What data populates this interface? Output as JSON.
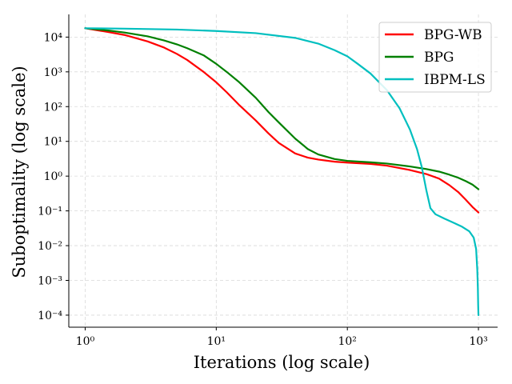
{
  "chart_data": {
    "type": "line",
    "title": "",
    "xlabel": "Iterations (log scale)",
    "ylabel": "Suboptimality (log scale)",
    "xscale": "log",
    "yscale": "log",
    "xlim": [
      0.75,
      1400
    ],
    "ylim": [
      4.5e-05,
      45000
    ],
    "x_ticks": [
      {
        "value": 1,
        "label": "10⁰"
      },
      {
        "value": 10,
        "label": "10¹"
      },
      {
        "value": 100,
        "label": "10²"
      },
      {
        "value": 1000,
        "label": "10³"
      }
    ],
    "y_ticks": [
      {
        "value": 0.0001,
        "label": "10⁻⁴"
      },
      {
        "value": 0.001,
        "label": "10⁻³"
      },
      {
        "value": 0.01,
        "label": "10⁻²"
      },
      {
        "value": 0.1,
        "label": "10⁻¹"
      },
      {
        "value": 1,
        "label": "10⁰"
      },
      {
        "value": 10,
        "label": "10¹"
      },
      {
        "value": 100,
        "label": "10²"
      },
      {
        "value": 1000,
        "label": "10³"
      },
      {
        "value": 10000,
        "label": "10⁴"
      }
    ],
    "grid": true,
    "legend_position": "top-right",
    "series": [
      {
        "name": "BPG-WB",
        "color": "#ff0000",
        "points": [
          [
            1,
            18000
          ],
          [
            1.5,
            14000
          ],
          [
            2,
            11500
          ],
          [
            3,
            7500
          ],
          [
            4,
            5000
          ],
          [
            5,
            3300
          ],
          [
            6,
            2200
          ],
          [
            8,
            1000
          ],
          [
            10,
            500
          ],
          [
            12,
            260
          ],
          [
            15,
            110
          ],
          [
            20,
            40
          ],
          [
            25,
            17
          ],
          [
            30,
            9
          ],
          [
            40,
            4.5
          ],
          [
            50,
            3.4
          ],
          [
            60,
            3.0
          ],
          [
            80,
            2.6
          ],
          [
            100,
            2.45
          ],
          [
            150,
            2.25
          ],
          [
            200,
            2.0
          ],
          [
            300,
            1.5
          ],
          [
            400,
            1.15
          ],
          [
            500,
            0.85
          ],
          [
            600,
            0.55
          ],
          [
            700,
            0.35
          ],
          [
            800,
            0.21
          ],
          [
            900,
            0.13
          ],
          [
            1000,
            0.09
          ]
        ]
      },
      {
        "name": "BPG",
        "color": "#008000",
        "points": [
          [
            1,
            18000
          ],
          [
            1.5,
            15500
          ],
          [
            2,
            13500
          ],
          [
            3,
            10500
          ],
          [
            4,
            8000
          ],
          [
            5,
            6200
          ],
          [
            6,
            4800
          ],
          [
            8,
            3000
          ],
          [
            10,
            1700
          ],
          [
            12,
            1000
          ],
          [
            15,
            500
          ],
          [
            20,
            180
          ],
          [
            25,
            70
          ],
          [
            30,
            35
          ],
          [
            40,
            12
          ],
          [
            50,
            6
          ],
          [
            60,
            4.2
          ],
          [
            80,
            3.1
          ],
          [
            100,
            2.75
          ],
          [
            150,
            2.5
          ],
          [
            200,
            2.3
          ],
          [
            300,
            1.9
          ],
          [
            400,
            1.6
          ],
          [
            500,
            1.35
          ],
          [
            600,
            1.1
          ],
          [
            700,
            0.9
          ],
          [
            800,
            0.72
          ],
          [
            900,
            0.57
          ],
          [
            1000,
            0.42
          ]
        ]
      },
      {
        "name": "IBPM-LS",
        "color": "#00bfbf",
        "points": [
          [
            1,
            18000
          ],
          [
            2,
            17500
          ],
          [
            5,
            16500
          ],
          [
            10,
            15000
          ],
          [
            20,
            13000
          ],
          [
            40,
            9500
          ],
          [
            60,
            6500
          ],
          [
            80,
            4200
          ],
          [
            100,
            2800
          ],
          [
            120,
            1700
          ],
          [
            150,
            900
          ],
          [
            200,
            300
          ],
          [
            250,
            90
          ],
          [
            300,
            22
          ],
          [
            340,
            6
          ],
          [
            370,
            1.8
          ],
          [
            400,
            0.4
          ],
          [
            430,
            0.12
          ],
          [
            470,
            0.08
          ],
          [
            550,
            0.06
          ],
          [
            650,
            0.045
          ],
          [
            750,
            0.035
          ],
          [
            850,
            0.026
          ],
          [
            920,
            0.017
          ],
          [
            960,
            0.008
          ],
          [
            980,
            0.002
          ],
          [
            990,
            0.0006
          ],
          [
            995,
            0.0002
          ],
          [
            1000,
            0.0001
          ]
        ]
      }
    ]
  }
}
